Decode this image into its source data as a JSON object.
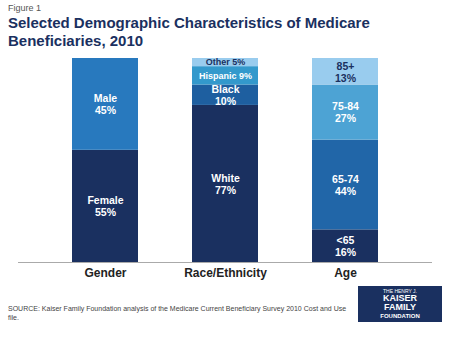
{
  "chart_data": {
    "type": "bar",
    "stacked": true,
    "title": "Selected Demographic Characteristics of Medicare\nBeneficiaries, 2010",
    "annotations": [
      "Figure 1",
      "SOURCE: Kaiser Family Foundation analysis of the Medicare Current Beneficiary Survey 2010 Cost and Use file.",
      "THE HENRY J.",
      "KAISER",
      "FAMILY",
      "FOUNDATION"
    ],
    "categories": [
      "Gender",
      "Race/Ethnicity",
      "Age"
    ],
    "values": [
      [
        55,
        45
      ],
      [
        77,
        10,
        9,
        5
      ],
      [
        16,
        44,
        27,
        13
      ]
    ],
    "value_labels": [
      [
        "Female\n55%",
        "Male\n45%"
      ],
      [
        "White\n77%",
        "Black\n10%",
        "Hispanic 9%",
        "Other 5%"
      ],
      [
        "<65\n16%",
        "65-74\n44%",
        "75-84\n27%",
        "85+\n13%"
      ]
    ],
    "colors": [
      [
        "#1a3060",
        "#2879be"
      ],
      [
        "#1a3060",
        "#1e5fa0",
        "#3399cc",
        "#99ccee"
      ],
      [
        "#1a3060",
        "#2166a8",
        "#4da3d4",
        "#99ccee"
      ]
    ],
    "ylim": [
      0,
      100
    ],
    "tick_labels": "x",
    "data_labels": true,
    "grid": false
  }
}
